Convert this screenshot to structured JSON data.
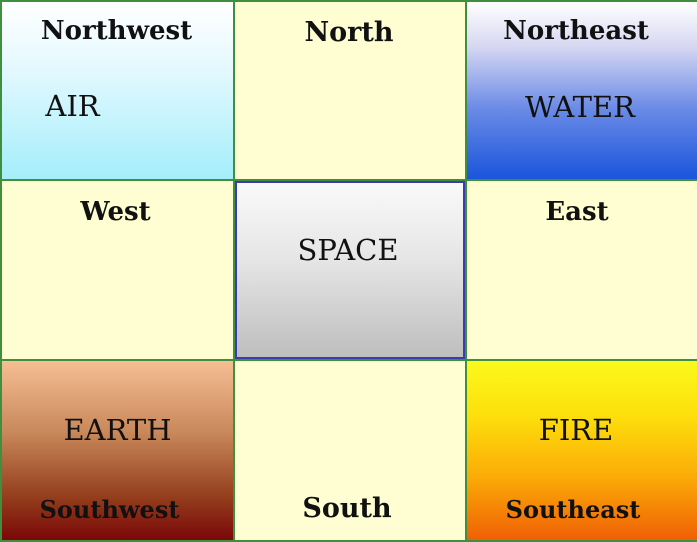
{
  "cells": {
    "northwest": {
      "direction": "Northwest",
      "element": "AIR"
    },
    "north": {
      "direction": "North"
    },
    "northeast": {
      "direction": "Northeast",
      "element": "WATER"
    },
    "west": {
      "direction": "West"
    },
    "center": {
      "element": "SPACE"
    },
    "east": {
      "direction": "East"
    },
    "southwest": {
      "direction": "Southwest",
      "element": "EARTH"
    },
    "south": {
      "direction": "South"
    },
    "southeast": {
      "direction": "Southeast",
      "element": "FIRE"
    }
  },
  "colors": {
    "grid_line": "#3f8f3f",
    "plain_cell": "#fefed2",
    "air": "#a4eefa",
    "water": "#1a55dc",
    "space": "#bdbdbd",
    "earth": "#7a0708",
    "fire": "#f05f05"
  }
}
